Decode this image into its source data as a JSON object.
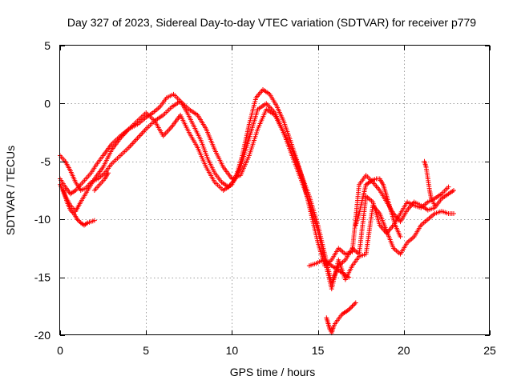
{
  "chart_data": {
    "type": "scatter",
    "title": "Day 327 of 2023, Sidereal Day-to-day VTEC variation (SDTVAR) for receiver p779",
    "xlabel": "GPS time / hours",
    "ylabel": "SDTVAR / TECUs",
    "xlim": [
      0,
      25
    ],
    "ylim": [
      -20,
      5
    ],
    "xticks": [
      0,
      5,
      10,
      15,
      20,
      25
    ],
    "yticks": [
      5,
      0,
      -5,
      -10,
      -15,
      -20
    ],
    "grid": true,
    "marker": "+",
    "color": "#ff0000",
    "series": [
      {
        "name": "track-1",
        "x": [
          0.0,
          0.3,
          0.6,
          0.9,
          1.2,
          1.5,
          1.8,
          2.1,
          2.5,
          3.0,
          3.5,
          4.0,
          4.5,
          5.0,
          5.4,
          5.8,
          6.2,
          6.6,
          7.0,
          7.4,
          7.8,
          8.2,
          8.6,
          9.0,
          9.4,
          9.8,
          10.2,
          10.6,
          11.0,
          11.4,
          11.8,
          12.2,
          12.6,
          13.0,
          13.4,
          13.8,
          14.2,
          14.6,
          15.0,
          15.4,
          15.8,
          16.2,
          16.6,
          17.0,
          17.4,
          17.8,
          18.2,
          18.6,
          19.0,
          19.4,
          19.8,
          20.2,
          20.6,
          21.0,
          21.4,
          21.8,
          22.2,
          22.6,
          22.9
        ],
        "y": [
          -6.5,
          -7.2,
          -7.8,
          -7.5,
          -7.0,
          -6.5,
          -6.0,
          -5.3,
          -4.5,
          -3.5,
          -2.8,
          -2.2,
          -1.8,
          -1.2,
          -0.8,
          -0.3,
          0.5,
          0.8,
          0.2,
          -0.8,
          -2.0,
          -3.2,
          -4.8,
          -6.0,
          -6.8,
          -7.2,
          -6.5,
          -4.5,
          -1.8,
          0.5,
          1.2,
          0.8,
          -0.2,
          -1.5,
          -3.2,
          -5.0,
          -7.0,
          -9.5,
          -12.0,
          -14.0,
          -13.5,
          -12.5,
          -13.0,
          -12.8,
          -7.0,
          -6.2,
          -6.8,
          -7.5,
          -8.5,
          -9.5,
          -10.2,
          -9.2,
          -8.5,
          -8.8,
          -9.2,
          -9.0,
          -8.2,
          -7.8,
          -7.5
        ]
      },
      {
        "name": "track-2",
        "x": [
          0.0,
          0.3,
          0.6,
          0.9,
          1.2,
          1.6,
          2.0,
          2.5,
          3.0,
          3.5,
          4.0,
          4.5,
          5.0,
          5.5,
          6.0,
          6.5,
          7.0,
          7.5,
          8.0,
          8.5,
          9.0,
          9.5,
          10.0,
          10.5,
          11.0,
          11.5,
          12.0,
          12.5,
          13.0,
          13.5,
          14.0,
          14.5,
          15.0,
          15.4,
          15.8,
          16.2,
          16.6,
          17.0,
          17.4,
          17.8,
          18.2,
          18.6,
          19.0,
          19.4,
          19.8,
          20.2,
          20.6,
          21.0,
          21.4,
          21.8,
          22.2,
          22.6,
          22.9
        ],
        "y": [
          -7.0,
          -8.0,
          -8.8,
          -9.3,
          -8.5,
          -7.5,
          -6.5,
          -5.5,
          -4.0,
          -3.0,
          -2.2,
          -1.5,
          -0.8,
          -1.5,
          -2.8,
          -2.0,
          -1.0,
          -2.5,
          -3.8,
          -5.5,
          -6.8,
          -7.5,
          -7.0,
          -5.5,
          -3.0,
          -0.5,
          0.0,
          -0.8,
          -2.5,
          -4.5,
          -6.5,
          -8.5,
          -11.0,
          -13.5,
          -16.0,
          -13.5,
          -15.2,
          -14.0,
          -13.2,
          -13.0,
          -8.8,
          -9.5,
          -11.0,
          -12.5,
          -13.0,
          -12.0,
          -11.5,
          -10.5,
          -10.0,
          -9.5,
          -9.3,
          -9.5,
          -9.5
        ]
      },
      {
        "name": "track-3",
        "x": [
          0.0,
          0.3,
          0.6,
          0.9,
          1.2,
          1.5,
          1.8,
          2.2,
          2.6,
          3.0,
          3.5,
          4.0,
          4.5,
          5.0,
          5.5,
          6.0,
          6.5,
          7.0,
          7.5,
          8.0,
          8.5,
          9.0,
          9.5,
          10.0,
          10.5,
          11.0,
          11.5,
          12.0,
          12.5,
          13.0,
          13.5,
          14.0,
          14.5,
          15.0,
          15.4,
          15.8,
          16.2,
          16.6,
          17.0,
          17.4,
          17.8,
          18.2,
          18.6,
          19.0,
          19.4,
          19.8,
          20.2,
          20.6,
          21.0,
          21.4,
          21.8,
          22.2,
          22.6
        ],
        "y": [
          -4.5,
          -5.0,
          -5.8,
          -6.8,
          -7.5,
          -7.3,
          -6.8,
          -6.5,
          -6.0,
          -5.2,
          -4.5,
          -3.8,
          -3.0,
          -2.2,
          -1.5,
          -1.0,
          -0.3,
          0.2,
          -0.5,
          -1.0,
          -2.2,
          -4.0,
          -5.5,
          -6.5,
          -6.2,
          -4.5,
          -2.2,
          -0.5,
          -1.0,
          -2.5,
          -4.0,
          -6.0,
          -8.0,
          -10.5,
          -13.0,
          -15.5,
          -14.0,
          -13.5,
          -12.5,
          -13.0,
          -8.0,
          -8.5,
          -10.5,
          -11.2,
          -10.5,
          -9.5,
          -8.5,
          -8.8,
          -9.0,
          -8.5,
          -8.2,
          -7.8,
          -7.2
        ]
      },
      {
        "name": "track-4",
        "x": [
          0.2,
          0.4,
          0.6,
          0.8,
          1.0,
          1.2,
          1.4,
          1.6,
          1.8,
          2.0
        ],
        "y": [
          -7.5,
          -8.5,
          -9.2,
          -9.5,
          -10.0,
          -10.3,
          -10.5,
          -10.3,
          -10.2,
          -10.1
        ]
      },
      {
        "name": "track-5",
        "x": [
          15.5,
          15.6,
          15.7,
          15.8,
          15.9,
          16.0,
          16.2,
          16.4,
          16.6,
          16.8,
          17.0,
          17.2
        ],
        "y": [
          -18.5,
          -19.0,
          -19.5,
          -19.8,
          -19.3,
          -19.0,
          -18.6,
          -18.2,
          -18.0,
          -17.8,
          -17.5,
          -17.2
        ]
      },
      {
        "name": "track-6",
        "x": [
          14.5,
          14.9,
          15.3,
          15.8,
          16.3,
          16.8
        ],
        "y": [
          -14.0,
          -13.8,
          -13.5,
          -14.0,
          -14.5,
          -15.0
        ]
      },
      {
        "name": "track-7",
        "x": [
          17.2,
          17.4,
          17.6,
          17.8,
          18.0,
          18.2,
          18.4,
          18.6,
          18.8,
          19.0,
          19.2,
          19.5,
          19.8
        ],
        "y": [
          -10.5,
          -9.5,
          -8.2,
          -7.0,
          -6.8,
          -6.6,
          -6.5,
          -6.5,
          -7.0,
          -8.0,
          -9.0,
          -10.5,
          -11.5
        ]
      },
      {
        "name": "track-8",
        "x": [
          21.2,
          21.3,
          21.4,
          21.5,
          21.6,
          21.8
        ],
        "y": [
          -5.0,
          -5.5,
          -6.5,
          -7.5,
          -8.2,
          -8.8
        ]
      },
      {
        "name": "track-9",
        "x": [
          2.0,
          2.3,
          2.6,
          2.8
        ],
        "y": [
          -7.5,
          -7.0,
          -6.5,
          -6.0
        ]
      }
    ]
  }
}
